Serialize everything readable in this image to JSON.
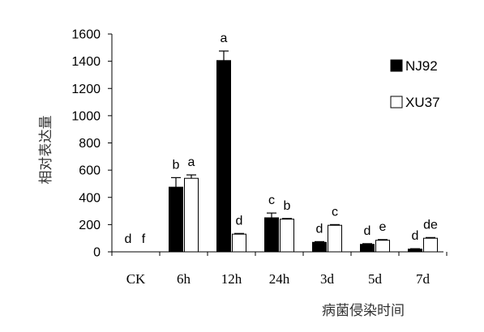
{
  "chart_data": {
    "type": "bar",
    "categories": [
      "CK",
      "6h",
      "12h",
      "24h",
      "3d",
      "5d",
      "7d"
    ],
    "series": [
      {
        "name": "NJ92",
        "color": "#000000",
        "values": [
          0,
          475,
          1405,
          250,
          70,
          55,
          20
        ],
        "errors": [
          0,
          70,
          70,
          35,
          5,
          5,
          3
        ],
        "sig": [
          "d",
          "b",
          "a",
          "c",
          "d",
          "d",
          "d"
        ]
      },
      {
        "name": "XU37",
        "color": "#ffffff",
        "values": [
          0,
          540,
          130,
          240,
          195,
          85,
          100
        ],
        "errors": [
          0,
          25,
          5,
          5,
          5,
          5,
          5
        ],
        "sig": [
          "f",
          "a",
          "d",
          "b",
          "c",
          "e",
          "de"
        ]
      }
    ],
    "xlabel": "病菌侵染时间",
    "ylabel": "相对表达量",
    "ylim": [
      0,
      1600
    ],
    "yticks": [
      0,
      200,
      400,
      600,
      800,
      1000,
      1200,
      1400,
      1600
    ],
    "grid": false,
    "legend": "right"
  }
}
